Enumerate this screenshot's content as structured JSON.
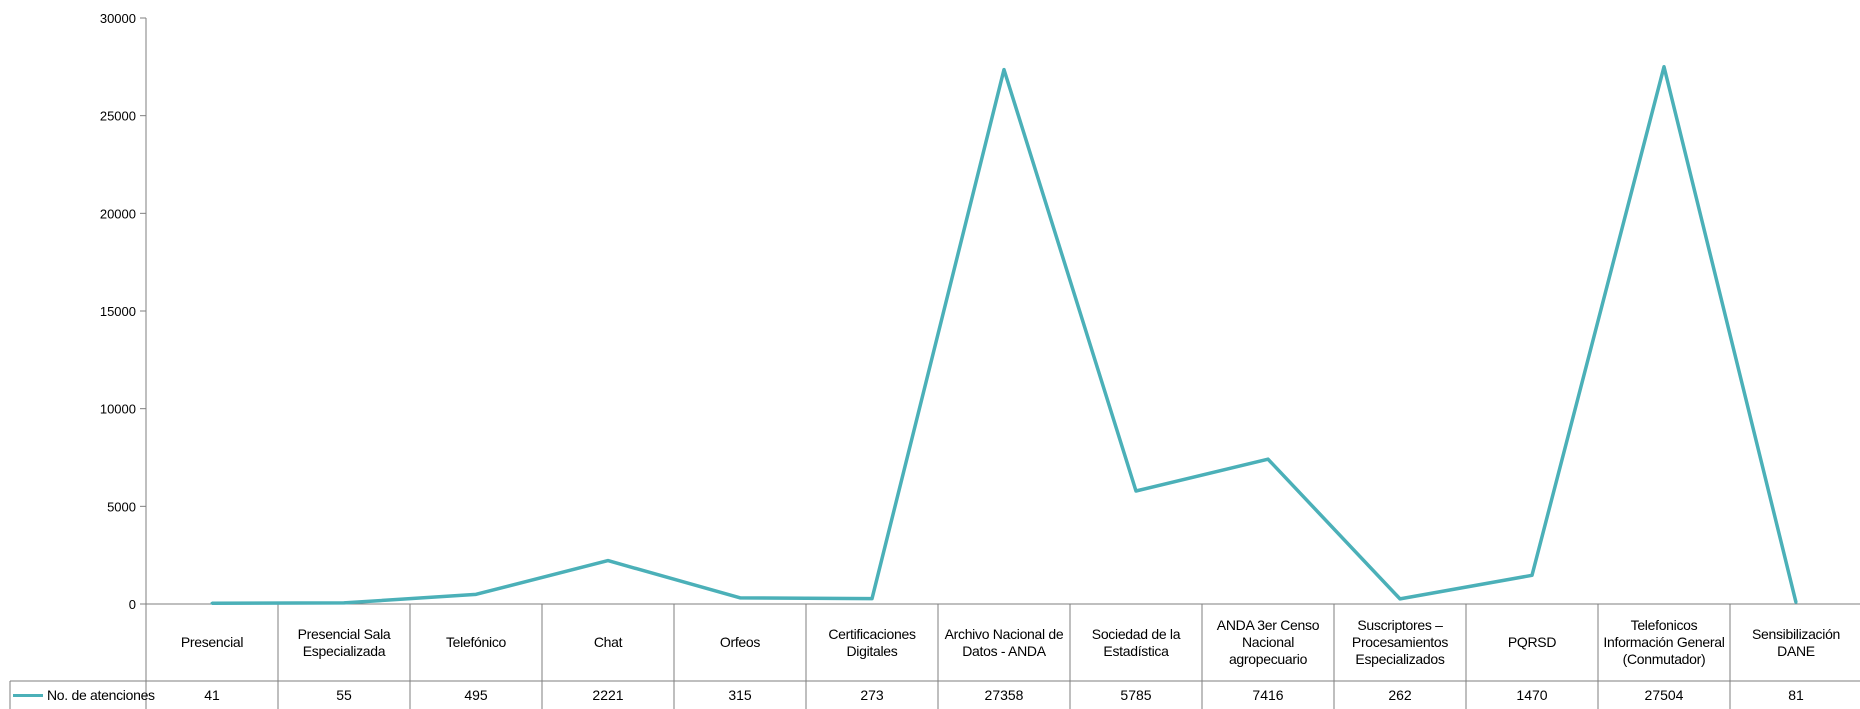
{
  "chart_data": {
    "type": "line",
    "categories": [
      "Presencial",
      "Presencial Sala Especializada",
      "Telefónico",
      "Chat",
      "Orfeos",
      "Certificaciones Digitales",
      "Archivo Nacional de Datos - ANDA",
      "Sociedad de la Estadística",
      "ANDA 3er Censo Nacional agropecuario",
      "Suscriptores – Procesamientos Especializados",
      "PQRSD",
      "Telefonicos Información General (Conmutador)",
      "Sensibilización DANE"
    ],
    "series": [
      {
        "name": "No. de atenciones",
        "values": [
          41,
          55,
          495,
          2221,
          315,
          273,
          27358,
          5785,
          7416,
          262,
          1470,
          27504,
          81
        ]
      }
    ],
    "ylim": [
      0,
      30000
    ],
    "yticks": [
      0,
      5000,
      10000,
      15000,
      20000,
      25000,
      30000
    ],
    "ytick_labels": [
      "0",
      "5000",
      "10000",
      "15000",
      "20000",
      "25000",
      "30000"
    ],
    "legend": "data-table-left",
    "data_table": true,
    "grid": false,
    "series_color": "#4bb0b8"
  }
}
